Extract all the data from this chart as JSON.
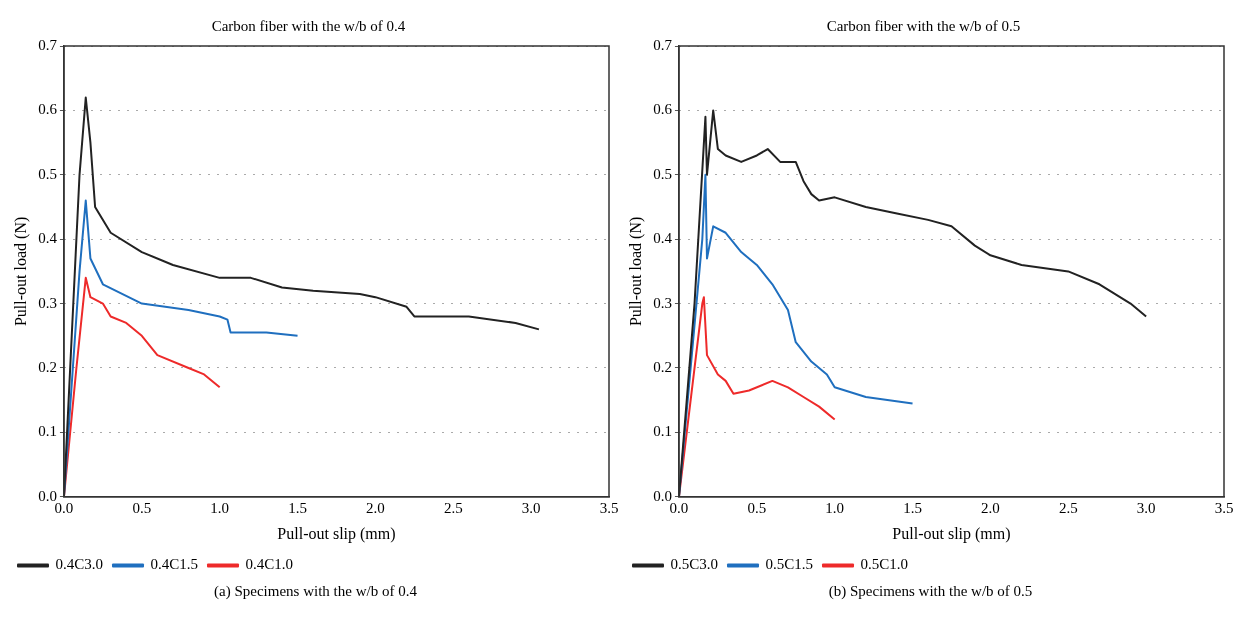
{
  "chart_data": [
    {
      "type": "line",
      "title": "Carbon fiber with the w/b of 0.4",
      "xlabel": "Pull-out slip (mm)",
      "ylabel": "Pull-out load (N)",
      "xlim": [
        0,
        3.5
      ],
      "ylim": [
        0,
        0.7
      ],
      "xticks": [
        {
          "value": 0,
          "label": "0.0"
        },
        {
          "value": 0.5,
          "label": "0.5"
        },
        {
          "value": 1,
          "label": "1.0"
        },
        {
          "value": 1.5,
          "label": "1.5"
        },
        {
          "value": 2,
          "label": "2.0"
        },
        {
          "value": 2.5,
          "label": "2.5"
        },
        {
          "value": 3,
          "label": "3.0"
        },
        {
          "value": 3.5,
          "label": "3.5"
        }
      ],
      "yticks": [
        {
          "value": 0,
          "label": "0.0"
        },
        {
          "value": 0.1,
          "label": "0.1"
        },
        {
          "value": 0.2,
          "label": "0.2"
        },
        {
          "value": 0.3,
          "label": "0.3"
        },
        {
          "value": 0.4,
          "label": "0.4"
        },
        {
          "value": 0.5,
          "label": "0.5"
        },
        {
          "value": 0.6,
          "label": "0.6"
        },
        {
          "value": 0.7,
          "label": "0.7"
        }
      ],
      "grid": "y",
      "legend": "bottom",
      "line_style": "solid",
      "annotations": [
        "(a)  Specimens with the w/b of 0.4"
      ],
      "series": [
        {
          "name": "0.4C3.0",
          "color": "#222222",
          "x": [
            0,
            0.05,
            0.1,
            0.14,
            0.17,
            0.2,
            0.3,
            0.5,
            0.7,
            1.0,
            1.2,
            1.4,
            1.6,
            1.9,
            2.0,
            2.2,
            2.25,
            2.6,
            2.9,
            3.05
          ],
          "values": [
            0,
            0.25,
            0.5,
            0.62,
            0.55,
            0.45,
            0.41,
            0.38,
            0.36,
            0.34,
            0.34,
            0.325,
            0.32,
            0.315,
            0.31,
            0.295,
            0.28,
            0.28,
            0.27,
            0.26
          ]
        },
        {
          "name": "0.4C1.5",
          "color": "#1f6fbf",
          "x": [
            0,
            0.1,
            0.14,
            0.17,
            0.25,
            0.5,
            0.8,
            1.0,
            1.05,
            1.07,
            1.3,
            1.5
          ],
          "values": [
            0,
            0.35,
            0.46,
            0.37,
            0.33,
            0.3,
            0.29,
            0.28,
            0.275,
            0.255,
            0.255,
            0.25
          ]
        },
        {
          "name": "0.4C1.0",
          "color": "#ee2a2a",
          "x": [
            0,
            0.08,
            0.14,
            0.17,
            0.25,
            0.3,
            0.4,
            0.5,
            0.6,
            0.8,
            0.9,
            1.0
          ],
          "values": [
            0,
            0.2,
            0.34,
            0.31,
            0.3,
            0.28,
            0.27,
            0.25,
            0.22,
            0.2,
            0.19,
            0.17
          ]
        }
      ]
    },
    {
      "type": "line",
      "title": "Carbon fiber with the w/b of 0.5",
      "xlabel": "Pull-out slip (mm)",
      "ylabel": "Pull-out load (N)",
      "xlim": [
        0,
        3.5
      ],
      "ylim": [
        0,
        0.7
      ],
      "xticks": [
        {
          "value": 0,
          "label": "0.0"
        },
        {
          "value": 0.5,
          "label": "0.5"
        },
        {
          "value": 1,
          "label": "1.0"
        },
        {
          "value": 1.5,
          "label": "1.5"
        },
        {
          "value": 2,
          "label": "2.0"
        },
        {
          "value": 2.5,
          "label": "2.5"
        },
        {
          "value": 3,
          "label": "3.0"
        },
        {
          "value": 3.5,
          "label": "3.5"
        }
      ],
      "yticks": [
        {
          "value": 0,
          "label": "0.0"
        },
        {
          "value": 0.1,
          "label": "0.1"
        },
        {
          "value": 0.2,
          "label": "0.2"
        },
        {
          "value": 0.3,
          "label": "0.3"
        },
        {
          "value": 0.4,
          "label": "0.4"
        },
        {
          "value": 0.5,
          "label": "0.5"
        },
        {
          "value": 0.6,
          "label": "0.6"
        },
        {
          "value": 0.7,
          "label": "0.7"
        }
      ],
      "grid": "y",
      "legend": "bottom",
      "line_style": "solid",
      "annotations": [
        "(b)  Specimens with the w/b of 0.5"
      ],
      "series": [
        {
          "name": "0.5C3.0",
          "color": "#222222",
          "x": [
            0,
            0.1,
            0.17,
            0.18,
            0.2,
            0.22,
            0.25,
            0.3,
            0.4,
            0.5,
            0.57,
            0.65,
            0.75,
            0.8,
            0.85,
            0.9,
            1.0,
            1.2,
            1.4,
            1.6,
            1.75,
            1.9,
            2.0,
            2.2,
            2.5,
            2.7,
            2.9,
            3.0
          ],
          "values": [
            0,
            0.3,
            0.59,
            0.5,
            0.55,
            0.6,
            0.54,
            0.53,
            0.52,
            0.53,
            0.54,
            0.52,
            0.52,
            0.49,
            0.47,
            0.46,
            0.465,
            0.45,
            0.44,
            0.43,
            0.42,
            0.39,
            0.375,
            0.36,
            0.35,
            0.33,
            0.3,
            0.28
          ]
        },
        {
          "name": "0.5C1.5",
          "color": "#1f6fbf",
          "x": [
            0,
            0.15,
            0.17,
            0.18,
            0.22,
            0.3,
            0.4,
            0.5,
            0.6,
            0.7,
            0.75,
            0.85,
            0.95,
            1.0,
            1.2,
            1.5
          ],
          "values": [
            0,
            0.4,
            0.5,
            0.37,
            0.42,
            0.41,
            0.38,
            0.36,
            0.33,
            0.29,
            0.24,
            0.21,
            0.19,
            0.17,
            0.155,
            0.145
          ]
        },
        {
          "name": "0.5C1.0",
          "color": "#ee2a2a",
          "x": [
            0,
            0.15,
            0.16,
            0.18,
            0.25,
            0.3,
            0.35,
            0.45,
            0.6,
            0.7,
            0.8,
            0.9,
            1.0
          ],
          "values": [
            0,
            0.3,
            0.31,
            0.22,
            0.19,
            0.18,
            0.16,
            0.165,
            0.18,
            0.17,
            0.155,
            0.14,
            0.12
          ]
        }
      ]
    }
  ]
}
